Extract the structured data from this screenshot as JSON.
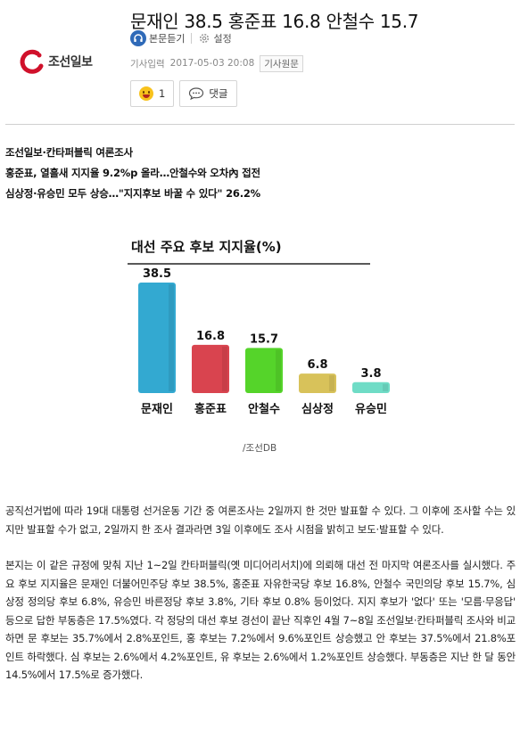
{
  "header": {
    "logo_text": "조선일보",
    "title": "문재인 38.5 홍준표 16.8 안철수 15.7",
    "listen_label": "본문듣기",
    "settings_label": "설정",
    "date_label": "기사입력",
    "date": "2017-05-03 20:08",
    "origin_label": "기사원문",
    "reaction_count": "1",
    "comment_label": "댓글"
  },
  "summary": {
    "line1": "조선일보·칸타퍼블릭 여론조사",
    "line2": "홍준표, 열흘새 지지율 9.2%p 올라…안철수와 오차內 접전",
    "line3": "심상정·유승민 모두 상승…\"지지후보 바꿀 수 있다\" 26.2%"
  },
  "chart_data": {
    "type": "bar",
    "title": "대선 주요 후보 지지율(%)",
    "categories": [
      "문재인",
      "홍준표",
      "안철수",
      "심상정",
      "유승민"
    ],
    "values": [
      38.5,
      16.8,
      15.7,
      6.8,
      3.8
    ],
    "data_labels": [
      "38.5",
      "16.8",
      "15.7",
      "6.8",
      "3.8"
    ],
    "colors": [
      "#33a9d1",
      "#d9444f",
      "#55d42a",
      "#d8c25a",
      "#6fdcc6"
    ],
    "ylim": [
      0,
      38.5
    ],
    "xlabel": "",
    "ylabel": "",
    "credit": "/조선DB"
  },
  "body": {
    "p1": "공직선거법에 따라 19대 대통령 선거운동 기간 중 여론조사는 2일까지 한 것만 발표할 수 있다. 그 이후에 조사할 수는 있지만 발표할 수가 없고, 2일까지 한 조사 결과라면 3일 이후에도 조사 시점을 밝히고 보도·발표할 수 있다.",
    "p2": "본지는 이 같은 규정에 맞춰 지난 1~2일 칸타퍼블릭(옛 미디어리서치)에 의뢰해 대선 전 마지막 여론조사를 실시했다. 주요 후보 지지율은 문재인 더불어민주당 후보 38.5%, 홍준표 자유한국당 후보 16.8%, 안철수 국민의당 후보 15.7%, 심상정 정의당 후보 6.8%, 유승민 바른정당 후보 3.8%, 기타 후보 0.8% 등이었다. 지지 후보가 '없다' 또는 '모름·무응답' 등으로 답한 부동층은 17.5%였다. 각 정당의 대선 후보 경선이 끝난 직후인 4월 7~8일 조선일보·칸타퍼블릭 조사와 비교하면 문 후보는 35.7%에서 2.8%포인트, 홍 후보는 7.2%에서 9.6%포인트 상승했고 안 후보는 37.5%에서 21.8%포인트 하락했다. 심 후보는 2.6%에서 4.2%포인트, 유 후보는 2.6%에서 1.2%포인트 상승했다. 부동층은 지난 한 달 동안 14.5%에서 17.5%로 증가했다."
  }
}
